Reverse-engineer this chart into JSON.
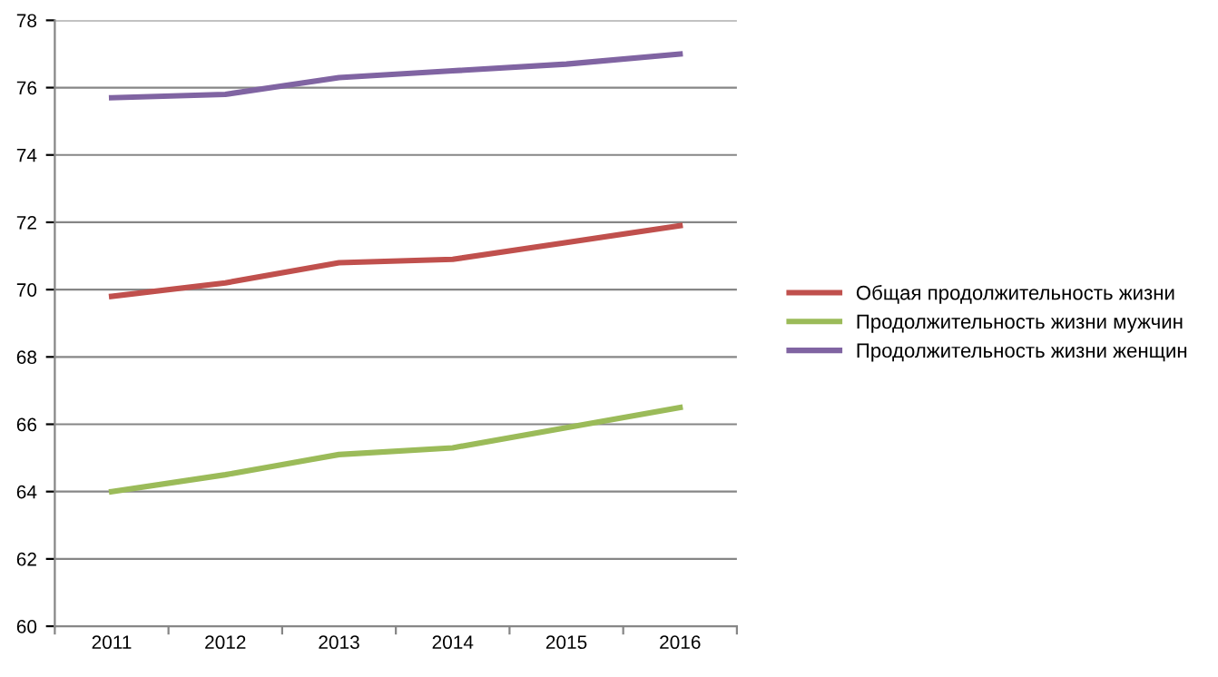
{
  "chart_data": {
    "type": "line",
    "categories": [
      "2011",
      "2012",
      "2013",
      "2014",
      "2015",
      "2016"
    ],
    "series": [
      {
        "name": "Общая продолжительность жизни",
        "color": "#c0504d",
        "values": [
          69.8,
          70.2,
          70.8,
          70.9,
          71.4,
          71.9
        ]
      },
      {
        "name": "Продолжительность жизни мужчин",
        "color": "#9bbb59",
        "values": [
          64.0,
          64.5,
          65.1,
          65.3,
          65.9,
          66.5
        ]
      },
      {
        "name": "Продолжительность жизни женщин",
        "color": "#8064a2",
        "values": [
          75.7,
          75.8,
          76.3,
          76.5,
          76.7,
          77.0
        ]
      }
    ],
    "ylim": [
      60,
      78
    ],
    "yticks": [
      60,
      62,
      64,
      66,
      68,
      70,
      72,
      74,
      76,
      78
    ],
    "grid": "y",
    "legend": "right",
    "marker": "none",
    "line_style": "solid"
  }
}
